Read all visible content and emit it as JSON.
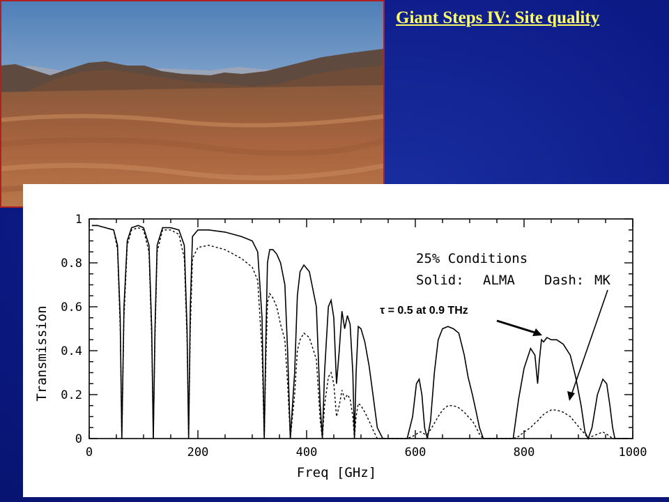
{
  "slide": {
    "title": "Giant Steps IV: Site quality"
  },
  "photo": {
    "icon": "desert-plateau-landscape"
  },
  "chart_data": {
    "type": "line",
    "xlabel": "Freq [GHz]",
    "ylabel": "Transmission",
    "xlim": [
      0,
      1000
    ],
    "ylim": [
      0,
      1
    ],
    "x_ticks": [
      0,
      200,
      400,
      600,
      800,
      1000
    ],
    "y_ticks": [
      0,
      0.2,
      0.4,
      0.6,
      0.8,
      1
    ],
    "y_tick_labels": [
      "0",
      "0.2",
      "0.4",
      "0.6",
      "0.8",
      "1"
    ],
    "annotations": {
      "conditions": "25% Conditions",
      "solid_label": "Solid:",
      "solid_name": "ALMA",
      "dash_label": "Dash:",
      "dash_name": "MK",
      "tau": "τ = 0.5 at 0.9 THz"
    },
    "series": [
      {
        "style": "solid",
        "x": [
          5,
          15,
          30,
          45,
          52,
          57,
          60,
          64,
          70,
          78,
          90,
          100,
          110,
          115,
          118,
          121,
          125,
          135,
          150,
          165,
          175,
          180,
          183,
          186,
          190,
          200,
          220,
          250,
          280,
          300,
          310,
          318,
          322,
          325,
          328,
          332,
          338,
          345,
          352,
          360,
          365,
          370,
          378,
          383,
          388,
          395,
          405,
          418,
          425,
          429,
          433,
          440,
          445,
          450,
          455,
          460,
          465,
          470,
          475,
          480,
          485,
          488,
          491,
          495,
          500,
          507,
          515,
          522,
          530,
          540,
          555,
          570,
          585,
          595,
          602,
          607,
          612,
          617,
          622,
          628,
          635,
          642,
          650,
          660,
          670,
          680,
          690,
          697,
          705,
          712,
          718,
          725,
          735,
          750,
          760,
          770,
          780,
          790,
          800,
          812,
          820,
          825,
          828,
          832,
          836,
          842,
          850,
          860,
          872,
          885,
          895,
          905,
          912,
          918,
          925,
          935,
          945,
          952,
          958,
          963,
          967,
          975,
          990
        ],
        "y": [
          0.97,
          0.97,
          0.96,
          0.95,
          0.88,
          0.55,
          0.0,
          0.6,
          0.9,
          0.96,
          0.97,
          0.96,
          0.88,
          0.5,
          0.0,
          0.5,
          0.88,
          0.96,
          0.96,
          0.95,
          0.88,
          0.5,
          0.0,
          0.6,
          0.92,
          0.95,
          0.95,
          0.94,
          0.92,
          0.9,
          0.85,
          0.55,
          0.0,
          0.45,
          0.8,
          0.86,
          0.86,
          0.84,
          0.8,
          0.7,
          0.4,
          0.0,
          0.3,
          0.65,
          0.76,
          0.79,
          0.76,
          0.6,
          0.15,
          0.0,
          0.3,
          0.6,
          0.63,
          0.55,
          0.25,
          0.4,
          0.58,
          0.5,
          0.56,
          0.52,
          0.3,
          0.0,
          0.3,
          0.51,
          0.5,
          0.44,
          0.33,
          0.2,
          0.05,
          0.0,
          0.0,
          0.0,
          0.0,
          0.1,
          0.25,
          0.27,
          0.2,
          0.05,
          0.0,
          0.08,
          0.3,
          0.45,
          0.5,
          0.51,
          0.5,
          0.48,
          0.38,
          0.28,
          0.2,
          0.12,
          0.05,
          0.0,
          0.0,
          0.0,
          0.0,
          0.0,
          0.0,
          0.18,
          0.32,
          0.41,
          0.38,
          0.25,
          0.35,
          0.45,
          0.44,
          0.46,
          0.45,
          0.45,
          0.43,
          0.38,
          0.28,
          0.15,
          0.03,
          0.0,
          0.05,
          0.2,
          0.27,
          0.25,
          0.15,
          0.05,
          0.0,
          0.0,
          0.0
        ]
      },
      {
        "style": "dashed",
        "x": [
          5,
          15,
          30,
          45,
          52,
          57,
          60,
          64,
          70,
          78,
          90,
          100,
          110,
          115,
          118,
          121,
          125,
          135,
          150,
          165,
          175,
          180,
          183,
          186,
          190,
          200,
          220,
          250,
          280,
          300,
          310,
          318,
          322,
          325,
          328,
          332,
          338,
          345,
          352,
          360,
          365,
          370,
          378,
          383,
          388,
          395,
          405,
          418,
          425,
          429,
          433,
          440,
          445,
          450,
          455,
          460,
          465,
          470,
          475,
          480,
          485,
          488,
          491,
          495,
          500,
          507,
          515,
          522,
          530,
          540,
          555,
          570,
          585,
          595,
          602,
          607,
          612,
          617,
          622,
          628,
          635,
          642,
          650,
          660,
          670,
          680,
          690,
          697,
          705,
          712,
          718,
          725,
          735,
          750,
          760,
          770,
          780,
          790,
          800,
          812,
          820,
          825,
          828,
          832,
          836,
          842,
          850,
          860,
          872,
          885,
          895,
          905,
          912,
          918,
          925,
          935,
          945,
          952,
          958,
          963,
          967,
          975,
          990
        ],
        "y": [
          0.97,
          0.97,
          0.96,
          0.95,
          0.86,
          0.5,
          0.0,
          0.55,
          0.88,
          0.95,
          0.96,
          0.95,
          0.85,
          0.45,
          0.0,
          0.45,
          0.85,
          0.95,
          0.95,
          0.93,
          0.82,
          0.45,
          0.0,
          0.5,
          0.82,
          0.87,
          0.88,
          0.86,
          0.82,
          0.78,
          0.72,
          0.4,
          0.0,
          0.35,
          0.62,
          0.66,
          0.64,
          0.6,
          0.52,
          0.45,
          0.25,
          0.0,
          0.2,
          0.4,
          0.45,
          0.48,
          0.46,
          0.36,
          0.08,
          0.0,
          0.15,
          0.28,
          0.3,
          0.25,
          0.1,
          0.15,
          0.22,
          0.18,
          0.2,
          0.18,
          0.1,
          0.0,
          0.1,
          0.16,
          0.15,
          0.12,
          0.08,
          0.04,
          0.0,
          0.0,
          0.0,
          0.0,
          0.0,
          0.01,
          0.02,
          0.03,
          0.03,
          0.02,
          0.02,
          0.04,
          0.07,
          0.1,
          0.13,
          0.15,
          0.15,
          0.14,
          0.12,
          0.1,
          0.08,
          0.05,
          0.02,
          0.0,
          0.0,
          0.0,
          0.0,
          0.0,
          0.0,
          0.01,
          0.03,
          0.05,
          0.07,
          0.08,
          0.09,
          0.1,
          0.11,
          0.12,
          0.13,
          0.13,
          0.12,
          0.1,
          0.07,
          0.04,
          0.02,
          0.0,
          0.01,
          0.02,
          0.03,
          0.02,
          0.01,
          0.0,
          0.0,
          0.0,
          0.0
        ]
      }
    ]
  }
}
